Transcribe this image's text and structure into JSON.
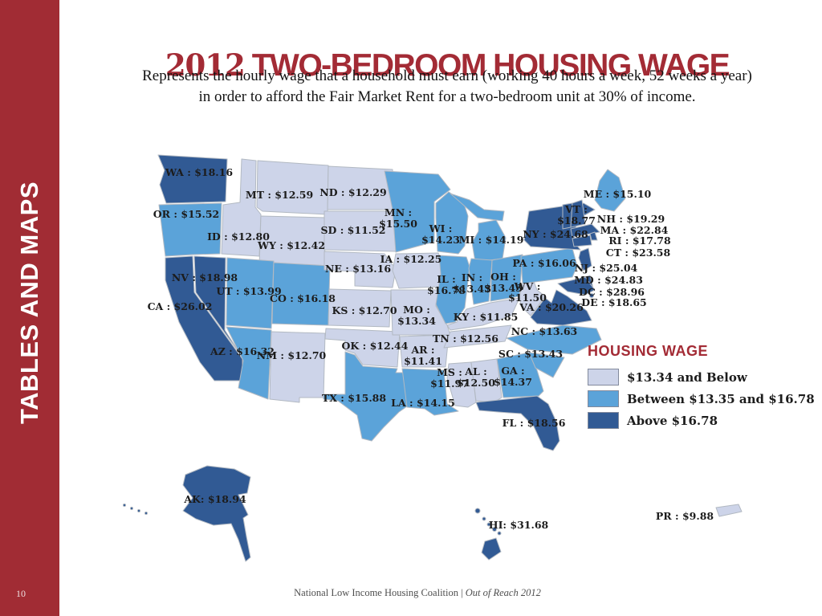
{
  "page": {
    "number": "10"
  },
  "sidebar": {
    "label": "TABLES AND MAPS",
    "color": "#a12c34"
  },
  "header": {
    "title_year": "2012",
    "title_rest": "TWO-BEDROOM HOUSING WAGE",
    "title_color": "#a32b35",
    "subtitle_line1": "Represents the hourly wage that a household must earn (working 40 hours a week, 52 weeks a year)",
    "subtitle_line2": "in order to afford the Fair Market Rent for a two-bedroom unit at 30% of income."
  },
  "legend": {
    "title": "HOUSING WAGE"
  },
  "footer": {
    "org": "National Low Income Housing Coalition",
    "separator": "|",
    "report": "Out of Reach 2012"
  },
  "chart_data": {
    "type": "choropleth",
    "title": "2012 TWO-BEDROOM HOUSING WAGE",
    "region": "United States",
    "unit": "USD per hour",
    "legend_position": "right",
    "bins": [
      {
        "id": "below",
        "label": "$13.34 and Below",
        "color": "#cdd4e9"
      },
      {
        "id": "between",
        "label": "Between $13.35 and $16.78",
        "color": "#5ba3d9"
      },
      {
        "id": "above",
        "label": "Above $16.78",
        "color": "#315a94"
      }
    ],
    "states": [
      {
        "abbr": "WA",
        "wage": 18.16,
        "bin": "above",
        "label_lines": [
          "WA : $18.16"
        ]
      },
      {
        "abbr": "OR",
        "wage": 15.52,
        "bin": "between",
        "label_lines": [
          "OR : $15.52"
        ]
      },
      {
        "abbr": "CA",
        "wage": 26.02,
        "bin": "above",
        "label_lines": [
          "CA : $26.02"
        ]
      },
      {
        "abbr": "NV",
        "wage": 18.98,
        "bin": "above",
        "label_lines": [
          "NV : $18.98"
        ]
      },
      {
        "abbr": "ID",
        "wage": 12.8,
        "bin": "below",
        "label_lines": [
          "ID : $12.80"
        ]
      },
      {
        "abbr": "MT",
        "wage": 12.59,
        "bin": "below",
        "label_lines": [
          "MT : $12.59"
        ]
      },
      {
        "abbr": "WY",
        "wage": 12.42,
        "bin": "below",
        "label_lines": [
          "WY : $12.42"
        ]
      },
      {
        "abbr": "UT",
        "wage": 13.99,
        "bin": "between",
        "label_lines": [
          "UT : $13.99"
        ]
      },
      {
        "abbr": "CO",
        "wage": 16.18,
        "bin": "between",
        "label_lines": [
          "CO : $16.18"
        ]
      },
      {
        "abbr": "AZ",
        "wage": 16.32,
        "bin": "between",
        "label_lines": [
          "AZ : $16.32"
        ]
      },
      {
        "abbr": "NM",
        "wage": 12.7,
        "bin": "below",
        "label_lines": [
          "NM : $12.70"
        ]
      },
      {
        "abbr": "ND",
        "wage": 12.29,
        "bin": "below",
        "label_lines": [
          "ND : $12.29"
        ]
      },
      {
        "abbr": "SD",
        "wage": 11.52,
        "bin": "below",
        "label_lines": [
          "SD : $11.52"
        ]
      },
      {
        "abbr": "NE",
        "wage": 13.16,
        "bin": "below",
        "label_lines": [
          "NE : $13.16"
        ]
      },
      {
        "abbr": "KS",
        "wage": 12.7,
        "bin": "below",
        "label_lines": [
          "KS : $12.70"
        ]
      },
      {
        "abbr": "OK",
        "wage": 12.44,
        "bin": "below",
        "label_lines": [
          "OK : $12.44"
        ]
      },
      {
        "abbr": "TX",
        "wage": 15.88,
        "bin": "between",
        "label_lines": [
          "TX : $15.88"
        ]
      },
      {
        "abbr": "MN",
        "wage": 15.5,
        "bin": "between",
        "label_lines": [
          "MN :",
          "$15.50"
        ]
      },
      {
        "abbr": "IA",
        "wage": 12.25,
        "bin": "below",
        "label_lines": [
          "IA : $12.25"
        ]
      },
      {
        "abbr": "MO",
        "wage": 13.34,
        "bin": "below",
        "label_lines": [
          "MO :",
          "$13.34"
        ]
      },
      {
        "abbr": "AR",
        "wage": 11.41,
        "bin": "below",
        "label_lines": [
          "AR :",
          "$11.41"
        ]
      },
      {
        "abbr": "LA",
        "wage": 14.15,
        "bin": "between",
        "label_lines": [
          "LA : $14.15"
        ]
      },
      {
        "abbr": "WI",
        "wage": 14.23,
        "bin": "between",
        "label_lines": [
          "WI :",
          "$14.23"
        ]
      },
      {
        "abbr": "IL",
        "wage": 16.78,
        "bin": "between",
        "label_lines": [
          "IL :",
          "$16.78"
        ]
      },
      {
        "abbr": "MS",
        "wage": 11.97,
        "bin": "below",
        "label_lines": [
          "MS :",
          "$11.97"
        ]
      },
      {
        "abbr": "MI",
        "wage": 14.19,
        "bin": "between",
        "label_lines": [
          "MI : $14.19"
        ]
      },
      {
        "abbr": "IN",
        "wage": 13.43,
        "bin": "between",
        "label_lines": [
          "IN :",
          "$13.43"
        ]
      },
      {
        "abbr": "OH",
        "wage": 13.43,
        "bin": "between",
        "label_lines": [
          "OH :",
          "$13.43"
        ]
      },
      {
        "abbr": "KY",
        "wage": 11.85,
        "bin": "below",
        "label_lines": [
          "KY : $11.85"
        ]
      },
      {
        "abbr": "TN",
        "wage": 12.56,
        "bin": "below",
        "label_lines": [
          "TN : $12.56"
        ]
      },
      {
        "abbr": "AL",
        "wage": 12.5,
        "bin": "below",
        "label_lines": [
          "AL :",
          "$12.50"
        ]
      },
      {
        "abbr": "GA",
        "wage": 14.37,
        "bin": "between",
        "label_lines": [
          "GA :",
          "$14.37"
        ]
      },
      {
        "abbr": "FL",
        "wage": 18.56,
        "bin": "above",
        "label_lines": [
          "FL : $18.56"
        ]
      },
      {
        "abbr": "SC",
        "wage": 13.43,
        "bin": "between",
        "label_lines": [
          "SC : $13.43"
        ]
      },
      {
        "abbr": "NC",
        "wage": 13.63,
        "bin": "between",
        "label_lines": [
          "NC : $13.63"
        ]
      },
      {
        "abbr": "VA",
        "wage": 20.26,
        "bin": "above",
        "label_lines": [
          "VA : $20.26"
        ]
      },
      {
        "abbr": "WV",
        "wage": 11.5,
        "bin": "below",
        "label_lines": [
          "WV :",
          "$11.50"
        ]
      },
      {
        "abbr": "PA",
        "wage": 16.06,
        "bin": "between",
        "label_lines": [
          "PA : $16.06"
        ]
      },
      {
        "abbr": "NY",
        "wage": 24.68,
        "bin": "above",
        "label_lines": [
          "NY : $24.68"
        ]
      },
      {
        "abbr": "ME",
        "wage": 15.1,
        "bin": "between",
        "label_lines": [
          "ME : $15.10"
        ]
      },
      {
        "abbr": "VT",
        "wage": 18.77,
        "bin": "above",
        "label_lines": [
          "VT :",
          "$18.77"
        ]
      },
      {
        "abbr": "NH",
        "wage": 19.29,
        "bin": "above",
        "label_lines": [
          "NH : $19.29"
        ]
      },
      {
        "abbr": "MA",
        "wage": 22.84,
        "bin": "above",
        "label_lines": [
          "MA : $22.84"
        ]
      },
      {
        "abbr": "RI",
        "wage": 17.78,
        "bin": "above",
        "label_lines": [
          "RI : $17.78"
        ]
      },
      {
        "abbr": "CT",
        "wage": 23.58,
        "bin": "above",
        "label_lines": [
          "CT : $23.58"
        ]
      },
      {
        "abbr": "NJ",
        "wage": 25.04,
        "bin": "above",
        "label_lines": [
          "NJ : $25.04"
        ]
      },
      {
        "abbr": "MD",
        "wage": 24.83,
        "bin": "above",
        "label_lines": [
          "MD : $24.83"
        ]
      },
      {
        "abbr": "DC",
        "wage": 28.96,
        "bin": "above",
        "label_lines": [
          "DC : $28.96"
        ]
      },
      {
        "abbr": "DE",
        "wage": 18.65,
        "bin": "above",
        "label_lines": [
          "DE : $18.65"
        ]
      },
      {
        "abbr": "AK",
        "wage": 18.94,
        "bin": "above",
        "label_lines": [
          "AK: $18.94"
        ]
      },
      {
        "abbr": "HI",
        "wage": 31.68,
        "bin": "above",
        "label_lines": [
          "HI: $31.68"
        ]
      },
      {
        "abbr": "PR",
        "wage": 9.88,
        "bin": "below",
        "label_lines": [
          "PR : $9.88"
        ]
      }
    ]
  }
}
